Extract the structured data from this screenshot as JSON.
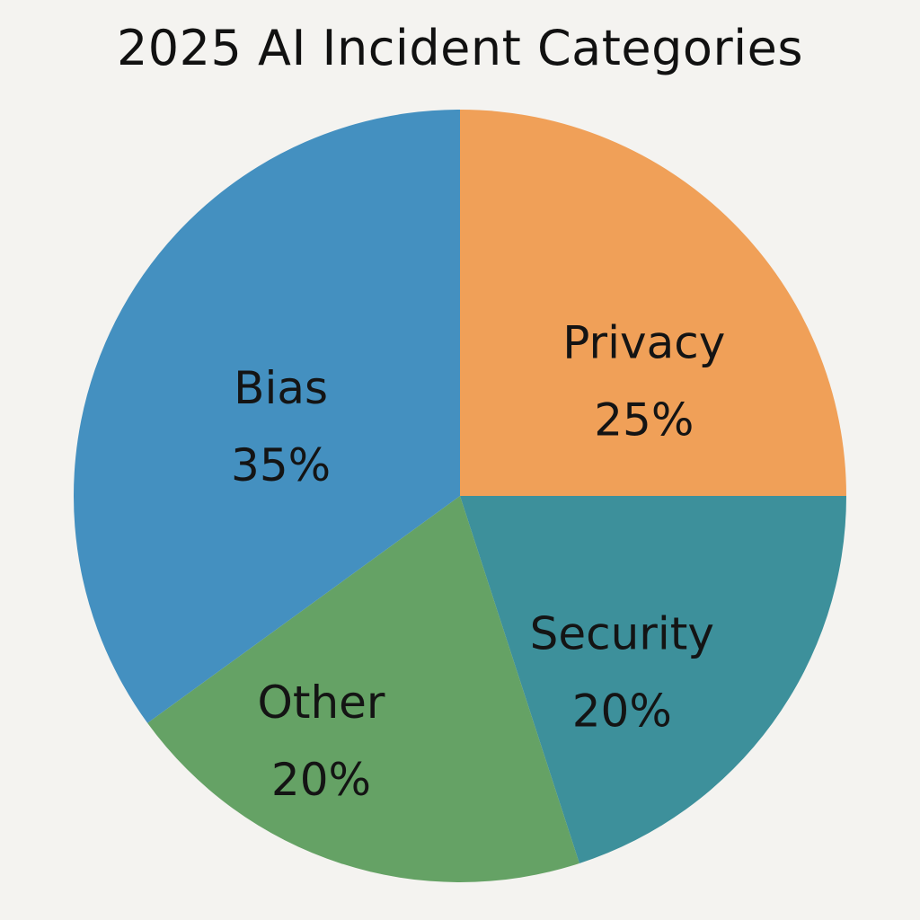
{
  "chart_data": {
    "type": "pie",
    "title": "2025 AI Incident Categories",
    "slices": [
      {
        "label": "Bias",
        "value": 35,
        "display": "35%",
        "color": "#4490c0"
      },
      {
        "label": "Privacy",
        "value": 25,
        "display": "25%",
        "color": "#f0a058"
      },
      {
        "label": "Security",
        "value": 20,
        "display": "20%",
        "color": "#3d909b"
      },
      {
        "label": "Other",
        "value": 20,
        "display": "20%",
        "color": "#65a265"
      }
    ]
  }
}
